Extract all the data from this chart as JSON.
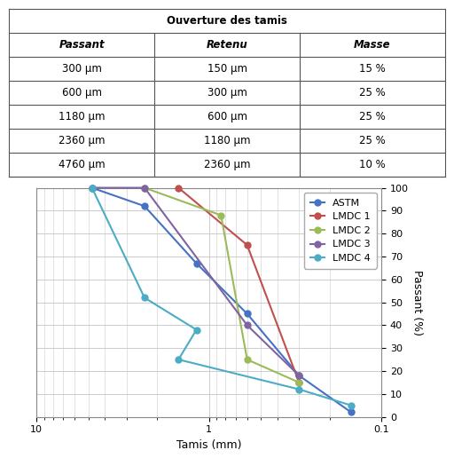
{
  "table_title": "Ouverture des tamis",
  "table_headers": [
    "Passant",
    "Retenu",
    "Masse"
  ],
  "table_rows": [
    [
      "300 μm",
      "150 μm",
      "15 %"
    ],
    [
      "600 μm",
      "300 μm",
      "25 %"
    ],
    [
      "1180 μm",
      "600 μm",
      "25 %"
    ],
    [
      "2360 μm",
      "1180 μm",
      "25 %"
    ],
    [
      "4760 μm",
      "2360 μm",
      "10 %"
    ]
  ],
  "series": [
    {
      "name": "ASTM",
      "color": "#4472C4",
      "x": [
        4.76,
        2.36,
        1.18,
        0.6,
        0.3,
        0.15
      ],
      "y": [
        100,
        92,
        67,
        45,
        18,
        2
      ]
    },
    {
      "name": "LMDC 1",
      "color": "#C0504D",
      "x": [
        1.5,
        0.6,
        0.3
      ],
      "y": [
        100,
        75,
        15
      ]
    },
    {
      "name": "LMDC 2",
      "color": "#9BBB59",
      "x": [
        2.36,
        0.85,
        0.6,
        0.3
      ],
      "y": [
        100,
        88,
        25,
        15
      ]
    },
    {
      "name": "LMDC 3",
      "color": "#8064A2",
      "x": [
        4.76,
        2.36,
        0.6,
        0.3
      ],
      "y": [
        100,
        100,
        40,
        18
      ]
    },
    {
      "name": "LMDC 4",
      "color": "#4BACC6",
      "x": [
        4.76,
        2.36,
        1.18,
        1.5,
        0.3,
        0.15
      ],
      "y": [
        100,
        52,
        38,
        25,
        12,
        5
      ]
    }
  ],
  "xlabel": "Tamis (mm)",
  "ylabel": "Passant (%)",
  "xlim_left": 10,
  "xlim_right": 0.1,
  "ylim": [
    0,
    100
  ],
  "yticks": [
    0,
    10,
    20,
    30,
    40,
    50,
    60,
    70,
    80,
    90,
    100
  ],
  "xticks": [
    10,
    1,
    0.1
  ],
  "grid_color": "#CCCCCC",
  "bg_color": "#FFFFFF",
  "table_fontsize": 8.5,
  "chart_fontsize": 8
}
